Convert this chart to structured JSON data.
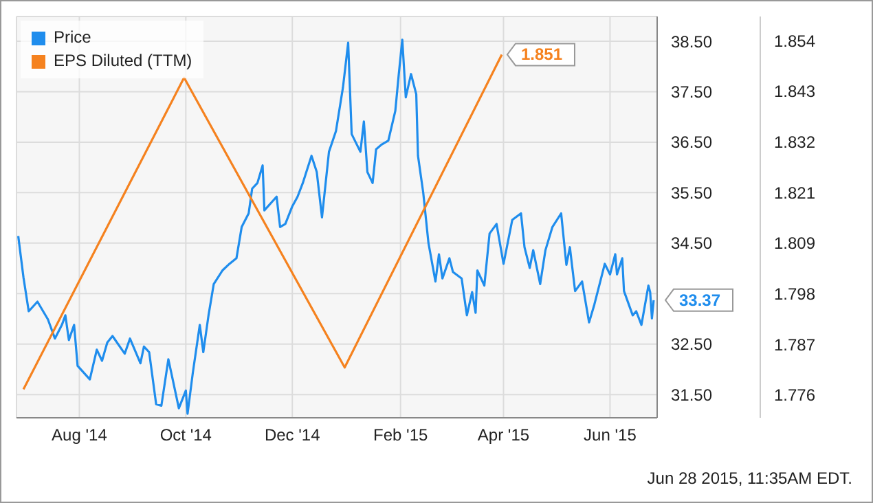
{
  "chart_data": {
    "type": "line",
    "legend": "top left",
    "grid": true,
    "marker": "none",
    "xlim": [
      "2014-06-26",
      "2015-06-28"
    ],
    "xticks": [
      {
        "value": "2014-08-01",
        "label": "Aug '14"
      },
      {
        "value": "2014-10-01",
        "label": "Oct '14"
      },
      {
        "value": "2014-12-01",
        "label": "Dec '14"
      },
      {
        "value": "2015-02-01",
        "label": "Feb '15"
      },
      {
        "value": "2015-04-01",
        "label": "Apr '15"
      },
      {
        "value": "2015-06-01",
        "label": "Jun '15"
      }
    ],
    "ylim": [
      31.04,
      38.99
    ],
    "yticks": [
      {
        "value": 31.5,
        "label": "31.50"
      },
      {
        "value": 32.5,
        "label": "32.50"
      },
      {
        "value": 33.5,
        "label": null
      },
      {
        "value": 34.5,
        "label": "34.50"
      },
      {
        "value": 35.5,
        "label": "35.50"
      },
      {
        "value": 36.5,
        "label": "36.50"
      },
      {
        "value": 37.5,
        "label": "37.50"
      },
      {
        "value": 38.5,
        "label": "38.50"
      }
    ],
    "y2lim": [
      1.7709,
      1.8594
    ],
    "y2ticks": [
      {
        "value": 1.776,
        "label": "1.776"
      },
      {
        "value": 1.7871,
        "label": "1.787"
      },
      {
        "value": 1.7983,
        "label": "1.798"
      },
      {
        "value": 1.8094,
        "label": "1.809"
      },
      {
        "value": 1.8206,
        "label": "1.821"
      },
      {
        "value": 1.8317,
        "label": "1.832"
      },
      {
        "value": 1.8429,
        "label": "1.843"
      },
      {
        "value": 1.854,
        "label": "1.854"
      }
    ],
    "series": [
      {
        "name": "Price",
        "color": "#1f8ded",
        "x": [
          "2014-06-27",
          "2014-06-30",
          "2014-07-03",
          "2014-07-08",
          "2014-07-14",
          "2014-07-18",
          "2014-07-22",
          "2014-07-24",
          "2014-07-26",
          "2014-07-29",
          "2014-07-31",
          "2014-08-07",
          "2014-08-11",
          "2014-08-14",
          "2014-08-17",
          "2014-08-20",
          "2014-08-27",
          "2014-08-30",
          "2014-09-05",
          "2014-09-07",
          "2014-09-10",
          "2014-09-14",
          "2014-09-17",
          "2014-09-21",
          "2014-09-27",
          "2014-10-01",
          "2014-10-02",
          "2014-10-05",
          "2014-10-09",
          "2014-10-11",
          "2014-10-14",
          "2014-10-17",
          "2014-10-22",
          "2014-10-26",
          "2014-10-30",
          "2014-11-02",
          "2014-11-06",
          "2014-11-08",
          "2014-11-11",
          "2014-11-14",
          "2014-11-15",
          "2014-11-22",
          "2014-11-24",
          "2014-11-27",
          "2014-12-01",
          "2014-12-04",
          "2014-12-07",
          "2014-12-12",
          "2014-12-15",
          "2014-12-18",
          "2014-12-22",
          "2014-12-26",
          "2014-12-30",
          "2015-01-02",
          "2015-01-04",
          "2015-01-09",
          "2015-01-11",
          "2015-01-13",
          "2015-01-16",
          "2015-01-18",
          "2015-01-21",
          "2015-01-25",
          "2015-01-29",
          "2015-01-31",
          "2015-02-02",
          "2015-02-04",
          "2015-02-07",
          "2015-02-10",
          "2015-02-11",
          "2015-02-14",
          "2015-02-17",
          "2015-02-21",
          "2015-02-23",
          "2015-02-25",
          "2015-03-01",
          "2015-03-03",
          "2015-03-08",
          "2015-03-11",
          "2015-03-14",
          "2015-03-16",
          "2015-03-17",
          "2015-03-21",
          "2015-03-24",
          "2015-03-28",
          "2015-04-01",
          "2015-04-06",
          "2015-04-11",
          "2015-04-13",
          "2015-04-16",
          "2015-04-18",
          "2015-04-22",
          "2015-04-25",
          "2015-04-29",
          "2015-05-04",
          "2015-05-07",
          "2015-05-09",
          "2015-05-12",
          "2015-05-16",
          "2015-05-20",
          "2015-05-23",
          "2015-05-27",
          "2015-05-29",
          "2015-06-01",
          "2015-06-04",
          "2015-06-05",
          "2015-06-08",
          "2015-06-09",
          "2015-06-14",
          "2015-06-16",
          "2015-06-19",
          "2015-06-23",
          "2015-06-24",
          "2015-06-25",
          "2015-06-26"
        ],
        "values": [
          34.64,
          33.82,
          33.15,
          33.34,
          32.99,
          32.61,
          32.88,
          33.07,
          32.58,
          32.88,
          32.07,
          31.8,
          32.39,
          32.17,
          32.53,
          32.66,
          32.31,
          32.61,
          32.12,
          32.45,
          32.34,
          31.31,
          31.28,
          32.2,
          31.23,
          31.58,
          31.12,
          31.93,
          32.88,
          32.34,
          33.07,
          33.69,
          33.96,
          34.09,
          34.2,
          34.82,
          35.09,
          35.58,
          35.69,
          36.04,
          35.15,
          35.42,
          34.82,
          34.88,
          35.23,
          35.42,
          35.69,
          36.23,
          35.91,
          35.01,
          36.31,
          36.72,
          37.58,
          38.47,
          36.66,
          36.31,
          36.91,
          35.91,
          35.69,
          36.36,
          36.45,
          36.53,
          37.12,
          37.85,
          38.53,
          37.39,
          37.85,
          37.45,
          36.23,
          35.5,
          34.5,
          33.74,
          34.28,
          33.8,
          34.2,
          33.93,
          33.8,
          33.07,
          33.53,
          33.12,
          33.96,
          33.66,
          34.69,
          34.88,
          34.09,
          34.96,
          35.09,
          34.42,
          34.01,
          34.36,
          33.69,
          34.36,
          34.82,
          35.09,
          34.07,
          34.42,
          33.55,
          33.74,
          32.93,
          33.28,
          33.82,
          34.09,
          33.88,
          34.28,
          33.88,
          34.2,
          33.55,
          33.07,
          33.15,
          32.88,
          33.66,
          33.53,
          33.01,
          33.37
        ],
        "value_labels": [
          null,
          null,
          null,
          null,
          null,
          null,
          null,
          null,
          null,
          null,
          null,
          null,
          null,
          null,
          null,
          null,
          null,
          null,
          null,
          null,
          null,
          null,
          null,
          null,
          null,
          null,
          null,
          null,
          null,
          null,
          null,
          null,
          null,
          null,
          null,
          null,
          null,
          null,
          null,
          null,
          null,
          null,
          null,
          null,
          null,
          null,
          null,
          null,
          null,
          null,
          null,
          null,
          null,
          null,
          null,
          null,
          null,
          null,
          null,
          null,
          null,
          null,
          null,
          null,
          null,
          null,
          null,
          null,
          null,
          null,
          null,
          null,
          null,
          null,
          null,
          null,
          null,
          null,
          null,
          null,
          null,
          null,
          null,
          null,
          null,
          null,
          null,
          null,
          null,
          null,
          null,
          null,
          null,
          null,
          null,
          null,
          null,
          null,
          null,
          null,
          null,
          null,
          null,
          null,
          null,
          null,
          null,
          null,
          null,
          null,
          null,
          null,
          null,
          "33.37"
        ]
      },
      {
        "name": "EPS Diluted (TTM)",
        "color": "#f5821f",
        "axis": "y2",
        "x": [
          "2014-06-30",
          "2014-09-30",
          "2014-12-31",
          "2015-03-31"
        ],
        "values": [
          1.7772,
          1.8459,
          1.782,
          1.851
        ],
        "value_labels": [
          null,
          null,
          null,
          "1.851"
        ]
      }
    ],
    "annotations": [
      "Jun 28 2015, 11:35AM EDT."
    ]
  }
}
